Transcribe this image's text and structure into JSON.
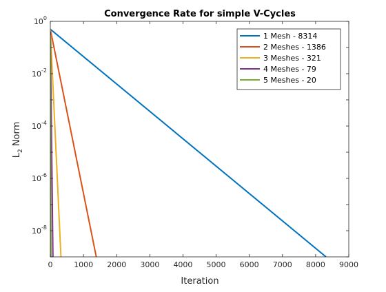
{
  "chart_data": {
    "type": "line",
    "title": "Convergence Rate for simple V-Cycles",
    "xlabel": "Iteration",
    "ylabel_main": "L",
    "ylabel_sub": "2",
    "ylabel_rest": " Norm",
    "xlim": [
      0,
      9000
    ],
    "ylim_log10": [
      -9,
      0
    ],
    "yscale": "log",
    "grid": false,
    "legend_position": "top-right",
    "x_ticks": [
      0,
      1000,
      2000,
      3000,
      4000,
      5000,
      6000,
      7000,
      8000,
      9000
    ],
    "y_ticks_exp": [
      -8,
      -6,
      -4,
      -2,
      0
    ],
    "y_tick_base": "10",
    "series": [
      {
        "name": "1 Mesh - 8314",
        "color": "#0072BD",
        "x": [
          0,
          8314
        ],
        "y": [
          0.5,
          1e-09
        ]
      },
      {
        "name": "2 Meshes - 1386",
        "color": "#D95319",
        "x": [
          0,
          1386
        ],
        "y": [
          0.5,
          1e-09
        ]
      },
      {
        "name": "3 Meshes - 321",
        "color": "#EDB120",
        "x": [
          0,
          321
        ],
        "y": [
          0.5,
          1e-09
        ]
      },
      {
        "name": "4 Meshes - 79",
        "color": "#7E2F8E",
        "x": [
          0,
          79
        ],
        "y": [
          0.4,
          1e-09
        ]
      },
      {
        "name": "5 Meshes - 20",
        "color": "#77AC30",
        "x": [
          0,
          20
        ],
        "y": [
          0.3,
          1e-09
        ]
      }
    ]
  }
}
